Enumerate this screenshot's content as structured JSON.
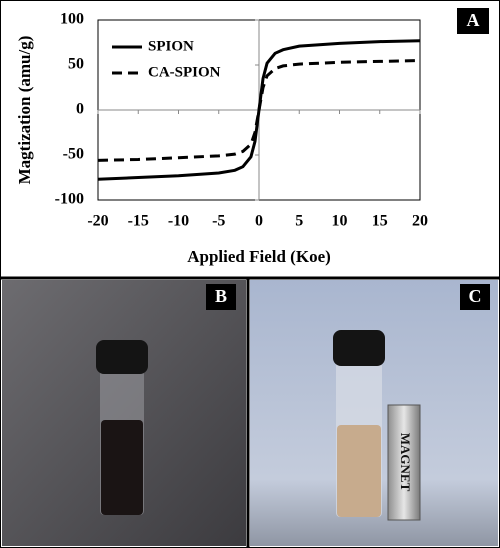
{
  "chart_data": {
    "type": "line",
    "xlabel": "Applied Field (Koe)",
    "ylabel": "Magtization (amu/g)",
    "x": [
      -20,
      -15,
      -10,
      -5,
      -3,
      -2,
      -1,
      -0.5,
      0,
      0.5,
      1,
      2,
      3,
      5,
      10,
      15,
      20
    ],
    "series": [
      {
        "name": "SPION",
        "color": "#000000",
        "dash": false,
        "values": [
          -77,
          -75,
          -73,
          -70,
          -67,
          -63,
          -52,
          -35,
          0,
          35,
          52,
          63,
          67,
          71,
          74,
          76,
          77
        ]
      },
      {
        "name": "CA-SPION",
        "color": "#000000",
        "dash": true,
        "values": [
          -56,
          -55,
          -53,
          -51,
          -49,
          -46,
          -38,
          -25,
          0,
          25,
          38,
          46,
          49,
          51,
          53,
          54,
          55
        ]
      }
    ],
    "xlim": [
      -20,
      20
    ],
    "xticks": [
      -20,
      -15,
      -10,
      -5,
      0,
      5,
      10,
      15,
      20
    ],
    "ylim": [
      -100,
      100
    ],
    "yticks": [
      -100,
      -50,
      0,
      50,
      100
    ],
    "legend": "upper-left"
  },
  "panels": {
    "chart_label": "A",
    "photo_labels": [
      "B",
      "C"
    ],
    "magnet_text": "MAGNET"
  }
}
